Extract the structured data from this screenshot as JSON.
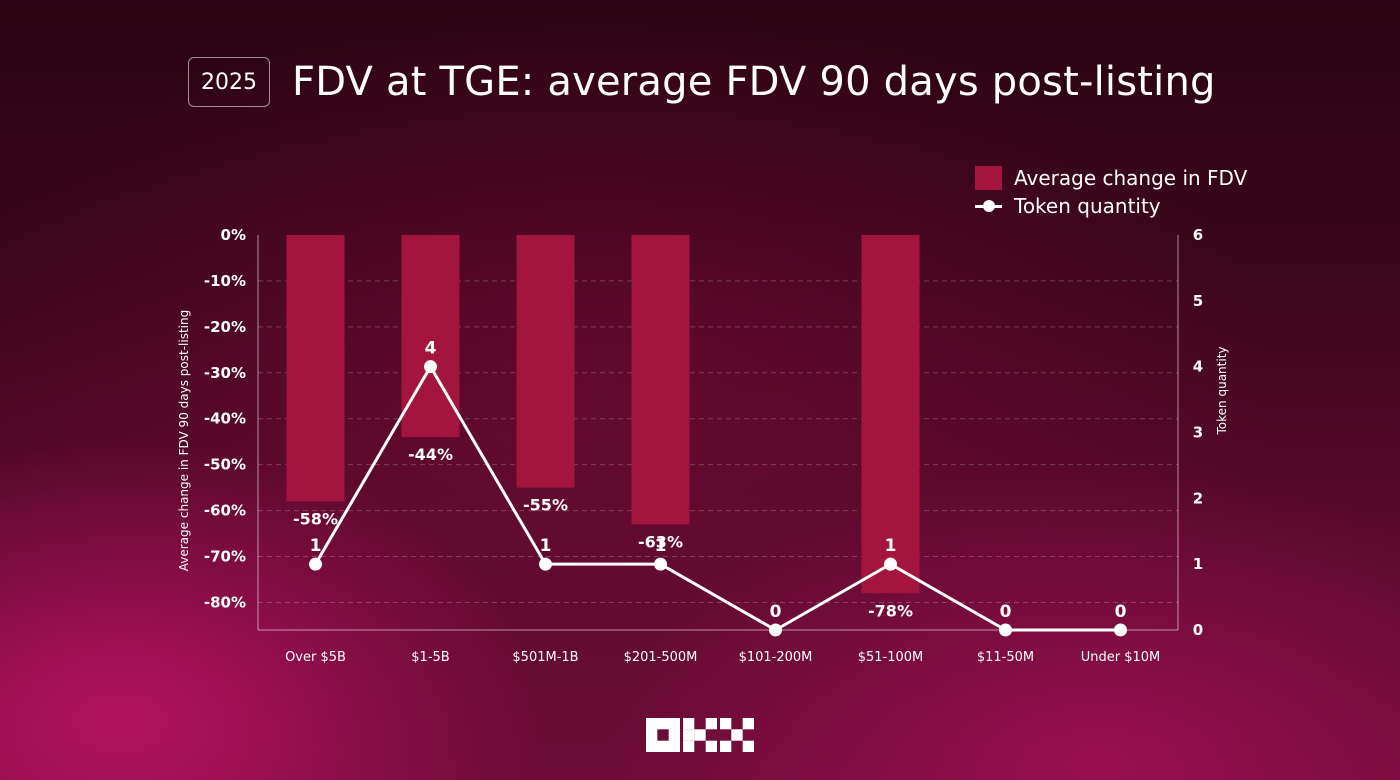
{
  "header": {
    "year": "2025",
    "title": "FDV at TGE: average FDV 90 days post-listing"
  },
  "legend": {
    "bars_label": "Average change in FDV",
    "line_label": "Token quantity"
  },
  "chart_data": {
    "type": "bar",
    "categories": [
      "Over $5B",
      "$1-5B",
      "$501M-1B",
      "$201-500M",
      "$101-200M",
      "$51-100M",
      "$11-50M",
      "Under $10M"
    ],
    "series": [
      {
        "name": "Average change in FDV",
        "type": "bar",
        "axis": "left",
        "values": [
          -58,
          -44,
          -55,
          -63,
          null,
          -78,
          null,
          null
        ],
        "value_labels": [
          "-58%",
          "-44%",
          "-55%",
          "-63%",
          "",
          "-78%",
          "",
          ""
        ]
      },
      {
        "name": "Token quantity",
        "type": "line",
        "axis": "right",
        "values": [
          1,
          4,
          1,
          1,
          0,
          1,
          0,
          0
        ],
        "value_labels": [
          "1",
          "4",
          "1",
          "1",
          "0",
          "1",
          "0",
          "0"
        ]
      }
    ],
    "ylabel": "Average change in FDV 90 days post-listing",
    "ylabel_right": "Token quantity",
    "ylim": [
      -86,
      0
    ],
    "y_ticks": [
      0,
      -10,
      -20,
      -30,
      -40,
      -50,
      -60,
      -70,
      -80
    ],
    "y_tick_labels": [
      "0%",
      "-10%",
      "-20%",
      "-30%",
      "-40%",
      "-50%",
      "-60%",
      "-70%",
      "-80%"
    ],
    "ylim_right": [
      0,
      6
    ],
    "y_right_ticks": [
      0,
      1,
      2,
      3,
      4,
      5,
      6
    ],
    "y_right_tick_labels": [
      "0",
      "1",
      "2",
      "3",
      "4",
      "5",
      "6"
    ],
    "grid": "horizontal-dashed",
    "legend_position": "top-right",
    "colors": {
      "bar": "#a3153f",
      "line": "#ffffff"
    }
  },
  "logo": {
    "name": "okx-logo"
  }
}
